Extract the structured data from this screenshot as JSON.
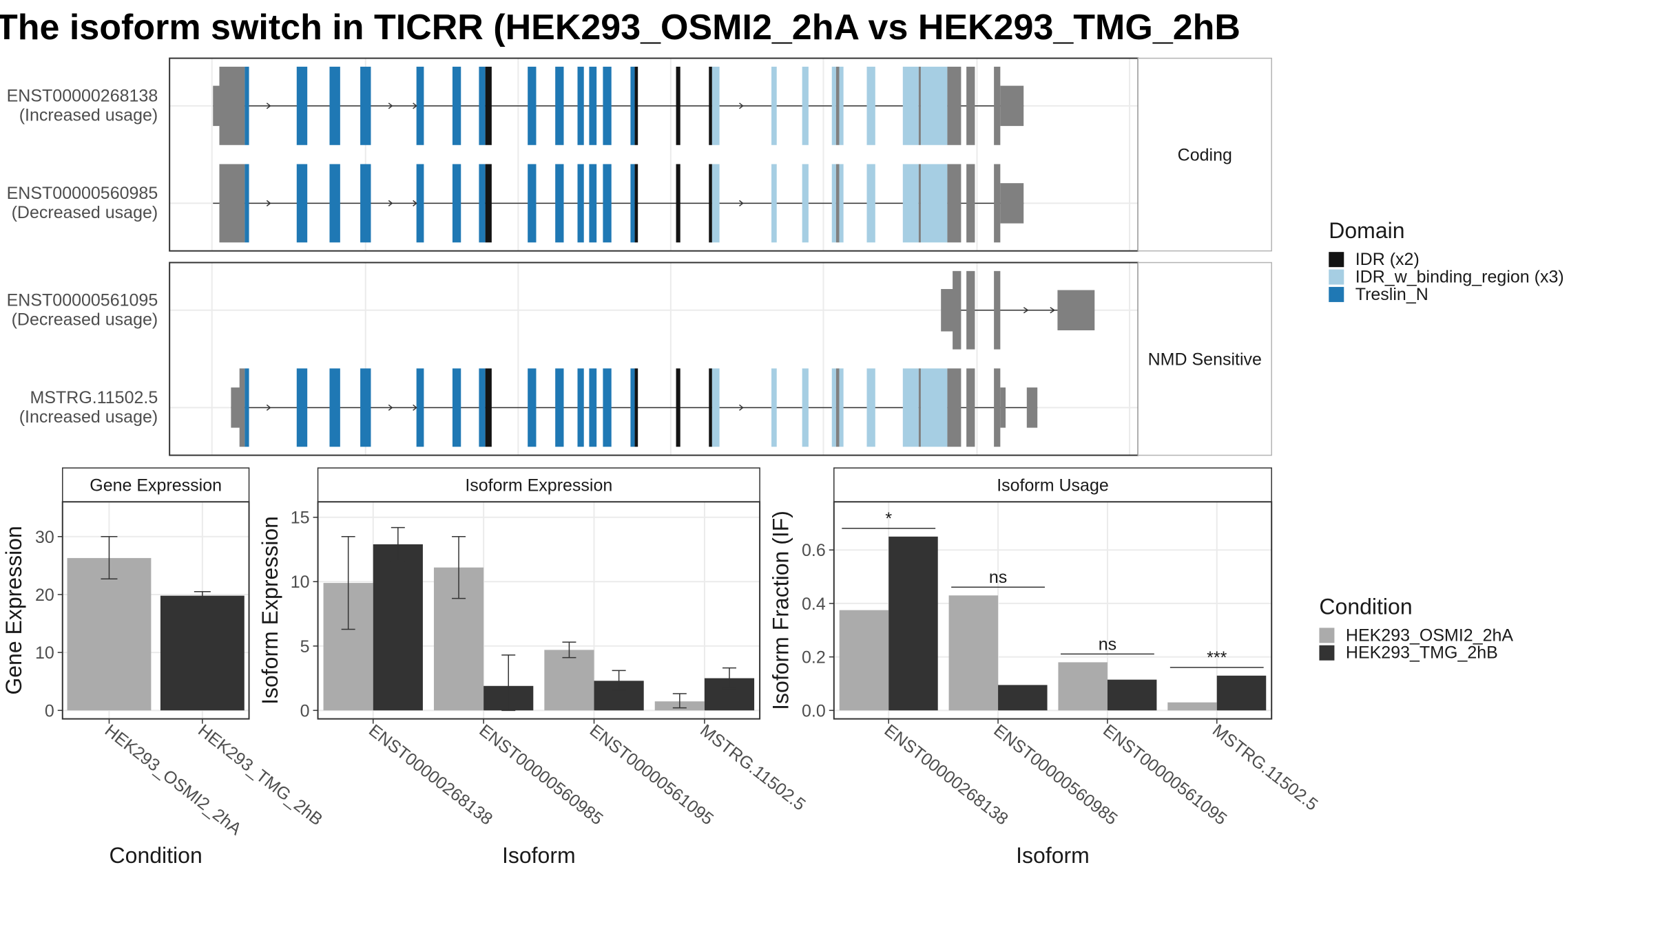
{
  "title": "The isoform switch in TICRR (HEK293_OSMI2_2hA vs HEK293_TMG_2hB",
  "colors": {
    "cond1": "#ababab",
    "cond2": "#333333",
    "utr": "#808080",
    "IDR (x2)": "#131313",
    "IDR_w_binding_region (x3)": "#a6cee3",
    "Treslin_N": "#1f78b4"
  },
  "structure": {
    "facets": [
      "Coding",
      "NMD Sensitive"
    ],
    "transcripts": [
      {
        "id": "ENST00000268138",
        "usage": "(Increased usage)",
        "facet": "Coding",
        "kind": "coding_a"
      },
      {
        "id": "ENST00000560985",
        "usage": "(Decreased usage)",
        "facet": "Coding",
        "kind": "coding_b"
      },
      {
        "id": "ENST00000561095",
        "usage": "(Decreased usage)",
        "facet": "NMD Sensitive",
        "kind": "nmd_short"
      },
      {
        "id": "MSTRG.11502.5",
        "usage": "(Increased usage)",
        "facet": "NMD Sensitive",
        "kind": "nmd_long"
      }
    ]
  },
  "legend_domain": {
    "title": "Domain",
    "items": [
      "IDR (x2)",
      "IDR_w_binding_region (x3)",
      "Treslin_N"
    ]
  },
  "legend_condition": {
    "title": "Condition",
    "items": [
      "HEK293_OSMI2_2hA",
      "HEK293_TMG_2hB"
    ]
  },
  "chart_data": [
    {
      "type": "bar",
      "title": "Gene Expression",
      "xlabel": "Condition",
      "ylabel": "Gene Expression",
      "categories": [
        "HEK293_OSMI2_2hA",
        "HEK293_TMG_2hB"
      ],
      "values": [
        26.3,
        19.8
      ],
      "error_low": [
        22.7,
        19.2
      ],
      "error_high": [
        30.0,
        20.5
      ],
      "yticks": [
        0,
        10,
        20,
        30
      ],
      "ylim": [
        0,
        36
      ]
    },
    {
      "type": "bar",
      "title": "Isoform Expression",
      "xlabel": "Isoform",
      "ylabel": "Isoform Expression",
      "categories": [
        "ENST00000268138",
        "ENST00000560985",
        "ENST00000561095",
        "MSTRG.11502.5"
      ],
      "series": [
        {
          "name": "HEK293_OSMI2_2hA",
          "values": [
            9.9,
            11.1,
            4.7,
            0.7
          ],
          "error_low": [
            6.3,
            8.7,
            4.1,
            0.2
          ],
          "error_high": [
            13.5,
            13.5,
            5.3,
            1.3
          ]
        },
        {
          "name": "HEK293_TMG_2hB",
          "values": [
            12.9,
            1.9,
            2.3,
            2.5
          ],
          "error_low": [
            11.6,
            0.0,
            1.6,
            1.7
          ],
          "error_high": [
            14.2,
            4.3,
            3.1,
            3.3
          ]
        }
      ],
      "yticks": [
        0,
        5,
        10,
        15
      ],
      "ylim": [
        0,
        16.2
      ]
    },
    {
      "type": "bar",
      "title": "Isoform Usage",
      "xlabel": "Isoform",
      "ylabel": "Isoform Fraction (IF)",
      "categories": [
        "ENST00000268138",
        "ENST00000560985",
        "ENST00000561095",
        "MSTRG.11502.5"
      ],
      "series": [
        {
          "name": "HEK293_OSMI2_2hA",
          "values": [
            0.375,
            0.43,
            0.18,
            0.03
          ]
        },
        {
          "name": "HEK293_TMG_2hB",
          "values": [
            0.65,
            0.095,
            0.115,
            0.13
          ]
        }
      ],
      "significance": [
        "*",
        "ns",
        "ns",
        "***"
      ],
      "yticks": [
        0.0,
        0.2,
        0.4,
        0.6
      ],
      "ytick_labels": [
        "0.0",
        "0.2",
        "0.4",
        "0.6"
      ],
      "ylim": [
        0,
        0.78
      ]
    }
  ]
}
